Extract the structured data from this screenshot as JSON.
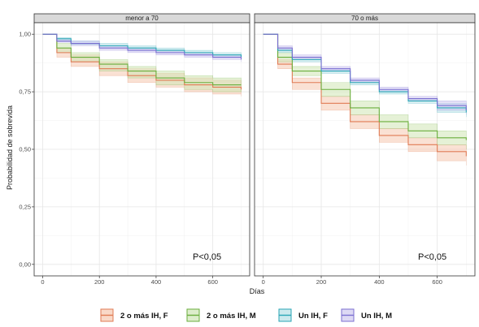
{
  "chart_data": {
    "type": "line",
    "title": "",
    "xlabel": "Días",
    "ylabel": "Probabilidad de sobrevida",
    "xlim": [
      -30,
      730
    ],
    "ylim": [
      -0.05,
      1.05
    ],
    "xticks": [
      0,
      200,
      400,
      600
    ],
    "yticks": [
      0,
      0.25,
      0.5,
      0.75,
      1
    ],
    "ytick_labels": [
      "0,00",
      "0,25",
      "0,50",
      "0,75",
      "1,00"
    ],
    "grid": true,
    "legend_position": "bottom",
    "legend": [
      {
        "label": "2 o más IH, F",
        "line": "#e07b54",
        "fill": "#f6c9b0"
      },
      {
        "label": "2 o más IH, M",
        "line": "#6aae3c",
        "fill": "#cfe5b5"
      },
      {
        "label": "Un IH, F",
        "line": "#2aa6b6",
        "fill": "#b6e0e5"
      },
      {
        "label": "Un IH, M",
        "line": "#7b6fd1",
        "fill": "#cfc9f0"
      }
    ],
    "panels": [
      {
        "strip": "menor a 70",
        "annotation": "P<0,05",
        "series": [
          {
            "legend_index": 0,
            "x": [
              0,
              50,
              100,
              200,
              300,
              400,
              500,
              600,
              700
            ],
            "y": [
              1.0,
              0.92,
              0.88,
              0.85,
              0.82,
              0.8,
              0.78,
              0.77,
              0.76
            ],
            "lower": [
              1.0,
              0.9,
              0.86,
              0.82,
              0.79,
              0.77,
              0.75,
              0.74,
              0.73
            ],
            "upper": [
              1.0,
              0.94,
              0.91,
              0.88,
              0.85,
              0.83,
              0.81,
              0.8,
              0.79
            ]
          },
          {
            "legend_index": 1,
            "x": [
              0,
              50,
              100,
              200,
              300,
              400,
              500,
              600,
              700
            ],
            "y": [
              1.0,
              0.94,
              0.9,
              0.87,
              0.84,
              0.81,
              0.79,
              0.78,
              0.78
            ],
            "lower": [
              1.0,
              0.92,
              0.88,
              0.84,
              0.81,
              0.78,
              0.76,
              0.75,
              0.75
            ],
            "upper": [
              1.0,
              0.96,
              0.92,
              0.89,
              0.86,
              0.84,
              0.82,
              0.81,
              0.81
            ]
          },
          {
            "legend_index": 2,
            "x": [
              0,
              50,
              100,
              200,
              300,
              400,
              500,
              600,
              700
            ],
            "y": [
              1.0,
              0.98,
              0.96,
              0.95,
              0.94,
              0.93,
              0.92,
              0.91,
              0.9
            ],
            "lower": [
              1.0,
              0.97,
              0.955,
              0.94,
              0.93,
              0.92,
              0.91,
              0.9,
              0.89
            ],
            "upper": [
              1.0,
              0.985,
              0.97,
              0.96,
              0.95,
              0.94,
              0.93,
              0.92,
              0.91
            ]
          },
          {
            "legend_index": 3,
            "x": [
              0,
              50,
              100,
              200,
              300,
              400,
              500,
              600,
              700
            ],
            "y": [
              1.0,
              0.97,
              0.96,
              0.94,
              0.93,
              0.92,
              0.91,
              0.9,
              0.89
            ],
            "lower": [
              1.0,
              0.965,
              0.95,
              0.93,
              0.92,
              0.91,
              0.9,
              0.89,
              0.88
            ],
            "upper": [
              1.0,
              0.98,
              0.97,
              0.95,
              0.94,
              0.93,
              0.92,
              0.91,
              0.9
            ]
          }
        ]
      },
      {
        "strip": "70 o más",
        "annotation": "P<0,05",
        "series": [
          {
            "legend_index": 0,
            "x": [
              0,
              50,
              100,
              200,
              300,
              400,
              500,
              600,
              700
            ],
            "y": [
              1.0,
              0.87,
              0.79,
              0.7,
              0.62,
              0.56,
              0.52,
              0.49,
              0.47
            ],
            "lower": [
              1.0,
              0.85,
              0.76,
              0.67,
              0.59,
              0.53,
              0.49,
              0.45,
              0.43
            ],
            "upper": [
              1.0,
              0.89,
              0.81,
              0.73,
              0.65,
              0.59,
              0.55,
              0.52,
              0.5
            ]
          },
          {
            "legend_index": 1,
            "x": [
              0,
              50,
              100,
              200,
              300,
              400,
              500,
              600,
              700
            ],
            "y": [
              1.0,
              0.9,
              0.84,
              0.76,
              0.68,
              0.62,
              0.58,
              0.55,
              0.54
            ],
            "lower": [
              1.0,
              0.88,
              0.82,
              0.73,
              0.65,
              0.59,
              0.55,
              0.52,
              0.5
            ],
            "upper": [
              1.0,
              0.92,
              0.86,
              0.79,
              0.71,
              0.65,
              0.61,
              0.58,
              0.57
            ]
          },
          {
            "legend_index": 2,
            "x": [
              0,
              50,
              100,
              200,
              300,
              400,
              500,
              600,
              700
            ],
            "y": [
              1.0,
              0.93,
              0.89,
              0.84,
              0.79,
              0.75,
              0.71,
              0.68,
              0.66
            ],
            "lower": [
              1.0,
              0.92,
              0.88,
              0.83,
              0.78,
              0.74,
              0.7,
              0.66,
              0.64
            ],
            "upper": [
              1.0,
              0.94,
              0.9,
              0.85,
              0.8,
              0.76,
              0.72,
              0.7,
              0.68
            ]
          },
          {
            "legend_index": 3,
            "x": [
              0,
              50,
              100,
              200,
              300,
              400,
              500,
              600,
              700
            ],
            "y": [
              1.0,
              0.94,
              0.9,
              0.85,
              0.8,
              0.76,
              0.72,
              0.69,
              0.67
            ],
            "lower": [
              1.0,
              0.93,
              0.89,
              0.84,
              0.79,
              0.75,
              0.71,
              0.67,
              0.65
            ],
            "upper": [
              1.0,
              0.95,
              0.91,
              0.86,
              0.81,
              0.77,
              0.73,
              0.71,
              0.69
            ]
          }
        ]
      }
    ]
  }
}
